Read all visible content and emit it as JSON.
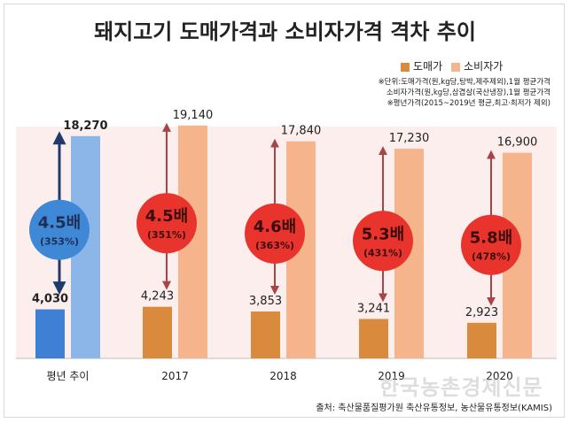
{
  "title": "돼지고기 도매가격과 소비자가격 격차 추이",
  "legend": [
    {
      "label": "도매가",
      "color": "#d98a3c"
    },
    {
      "label": "소비자가",
      "color": "#f5b48c"
    }
  ],
  "notes": [
    "※단위:도매가격(원,kg당,탕박,제주제외),1월 평균가격",
    "소비자가격(원,kg당,삼겹살(국산냉장),1월 평균가격",
    "※평년가격(2015~2019년 평균,최고·최저가 제외)"
  ],
  "source": "출처: 축산물품질평가원 축산유통정보, 농산물유통정보(KAMIS)",
  "watermark": "한국농촌경제신문",
  "chart_data": {
    "type": "bar",
    "categories": [
      "평년 추이",
      "2017",
      "2018",
      "2019",
      "2020"
    ],
    "series": [
      {
        "name": "도매가",
        "values": [
          4030,
          4243,
          3853,
          3241,
          2923
        ]
      },
      {
        "name": "소비자가",
        "values": [
          18270,
          19140,
          17840,
          17230,
          16900
        ]
      }
    ],
    "value_labels": {
      "wholesale": [
        "4,030",
        "4,243",
        "3,853",
        "3,241",
        "2,923"
      ],
      "consumer": [
        "18,270",
        "19,140",
        "17,840",
        "17,230",
        "16,900"
      ]
    },
    "ratios": [
      {
        "times": "4.5배",
        "pct": "(353%)"
      },
      {
        "times": "4.5배",
        "pct": "(351%)"
      },
      {
        "times": "4.6배",
        "pct": "(363%)"
      },
      {
        "times": "5.3배",
        "pct": "(431%)"
      },
      {
        "times": "5.8배",
        "pct": "(478%)"
      }
    ],
    "ylim": [
      0,
      20000
    ],
    "colors": {
      "baseline_wholesale": "#3f7fd4",
      "baseline_consumer": "#8db6e8",
      "wholesale": "#d98a3c",
      "consumer": "#f5b48c",
      "baseline_circle": "#3f88d6",
      "circle": "#e8342c",
      "baseline_arrow": "#1f3b6e",
      "arrow": "#a8434a",
      "highlight_bg": "#fdeeee"
    }
  }
}
